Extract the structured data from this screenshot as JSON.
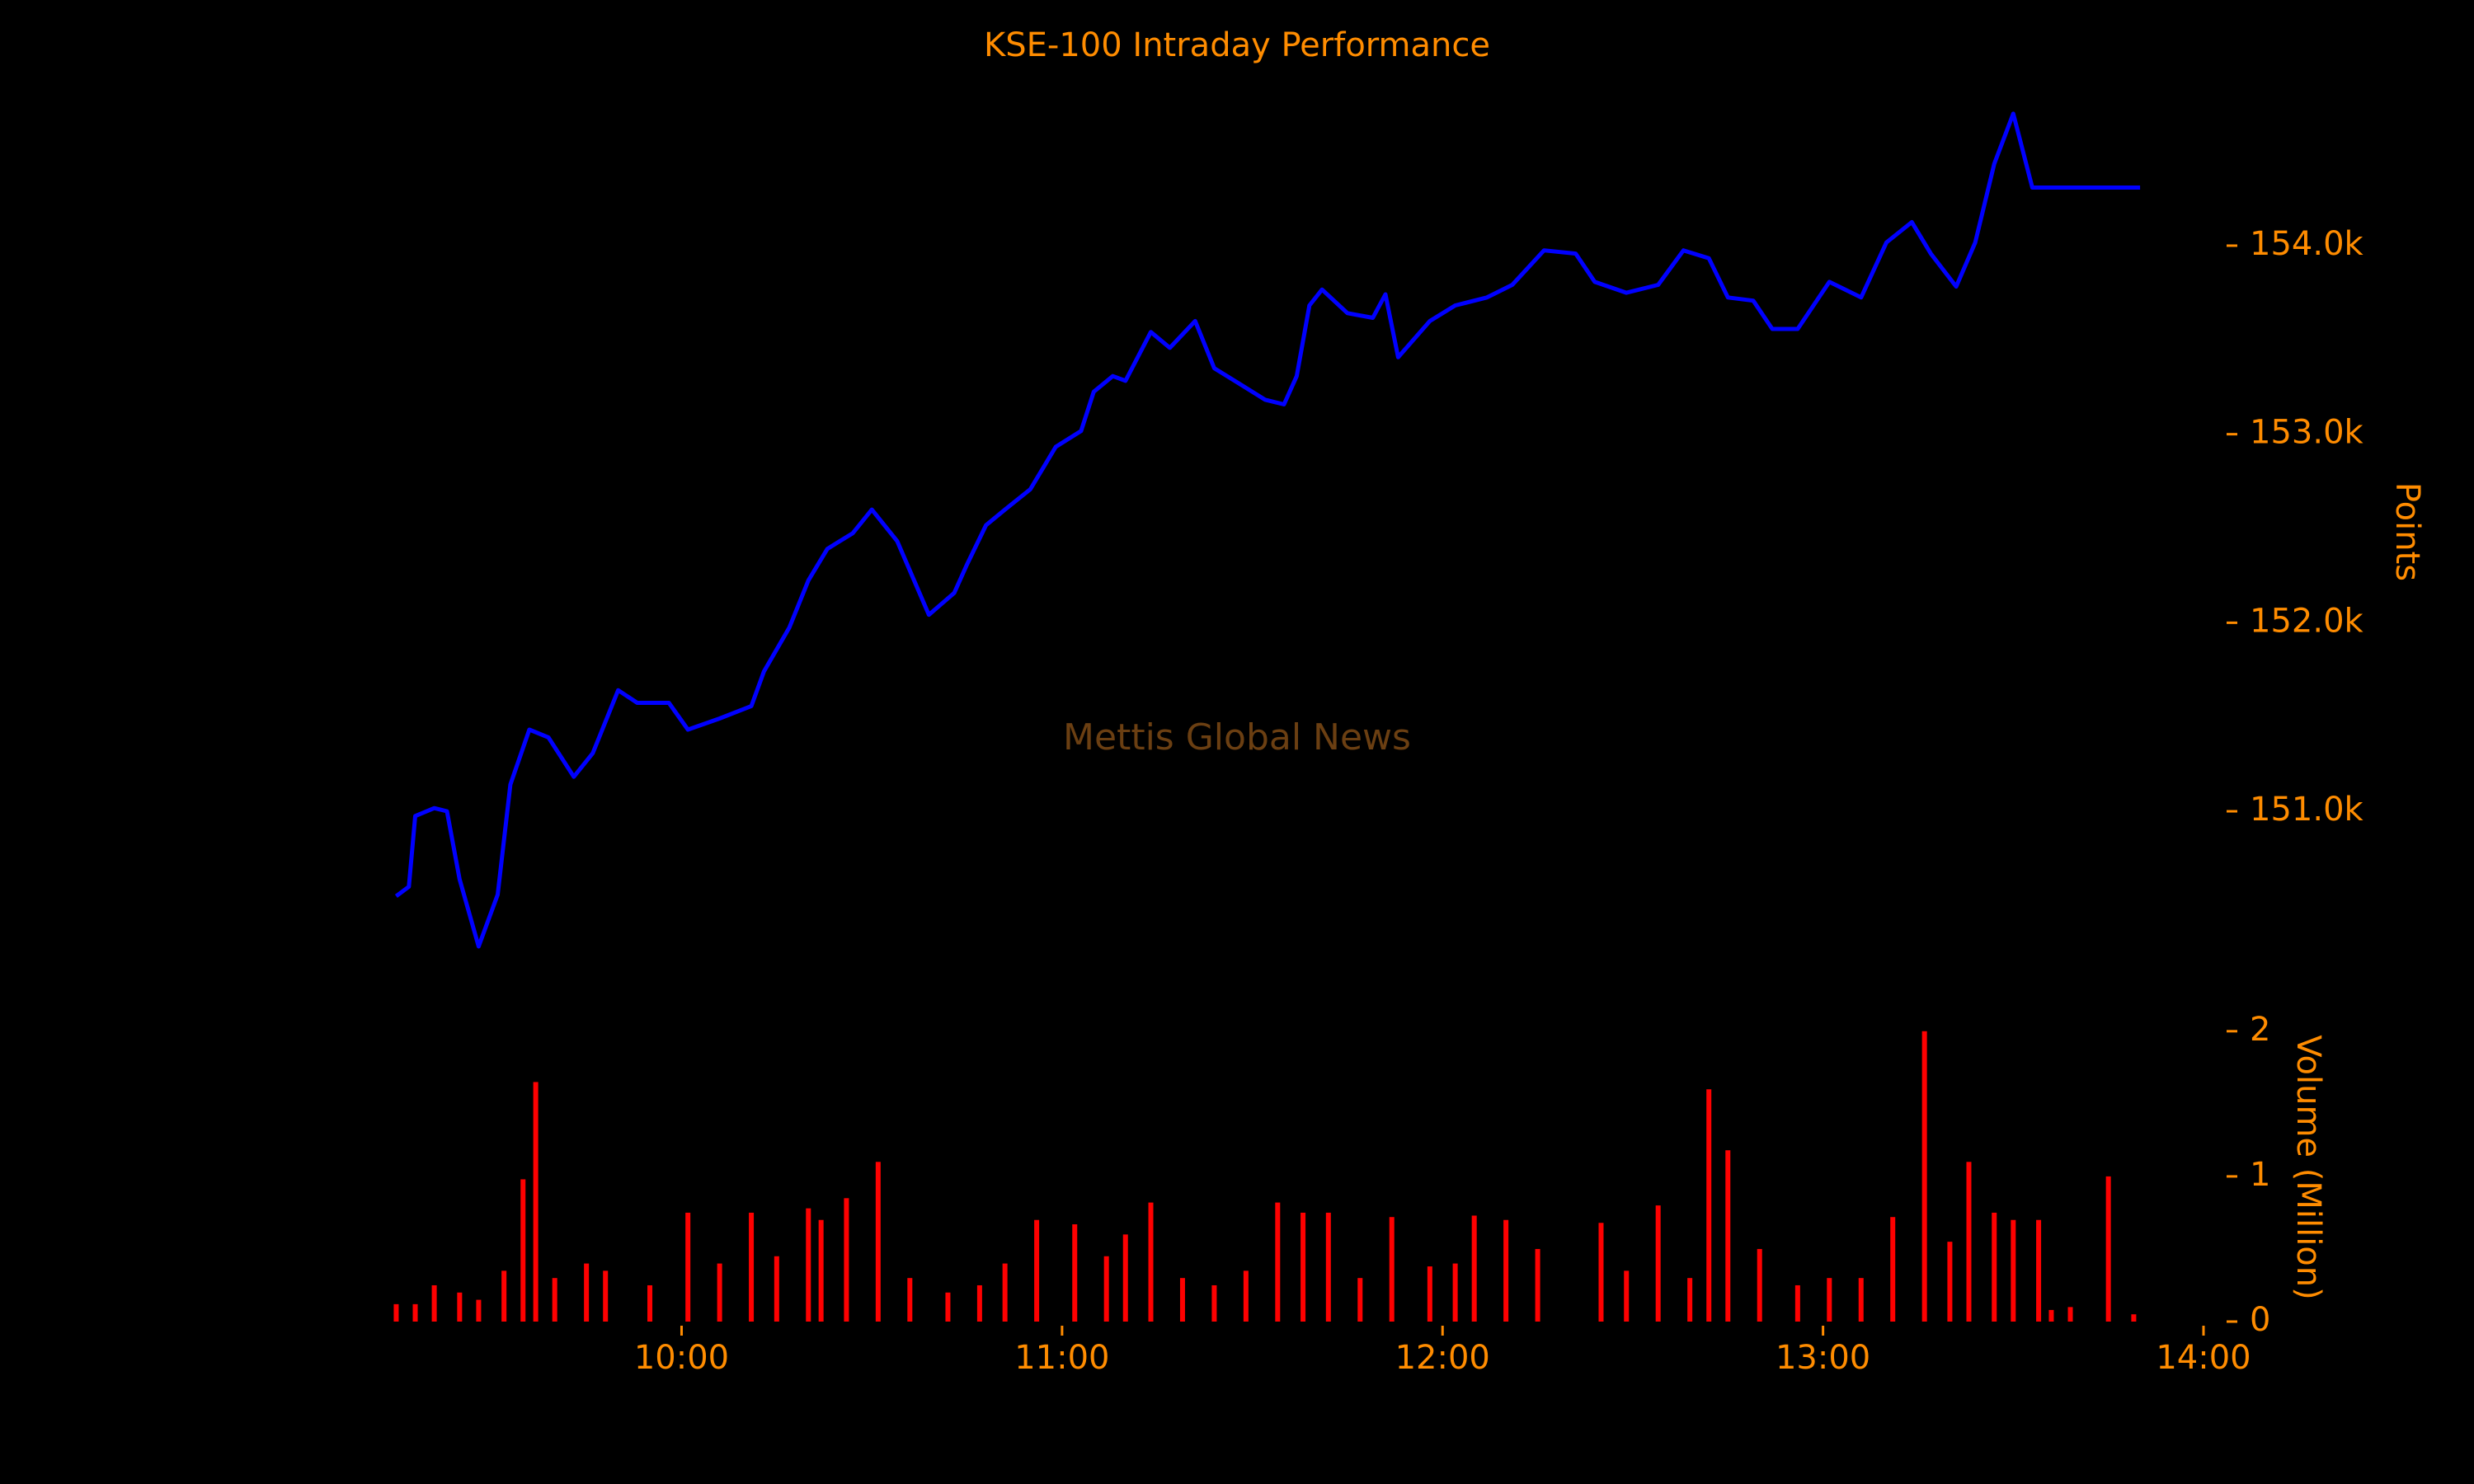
{
  "chart_data": [
    {
      "type": "line",
      "title": "KSE-100 Intraday Performance",
      "y_label": "Points",
      "annotation": "Mettis Global News",
      "xlim": [
        "09:10",
        "14:00"
      ],
      "ylim": [
        150200,
        154800
      ],
      "yticks": [
        {
          "value": 151000,
          "label": "151.0k"
        },
        {
          "value": 152000,
          "label": "152.0k"
        },
        {
          "value": 153000,
          "label": "153.0k"
        },
        {
          "value": 154000,
          "label": "154.0k"
        }
      ],
      "series": [
        {
          "name": "KSE-100",
          "color": "#0000ff",
          "x": [
            "09:15",
            "09:17",
            "09:18",
            "09:21",
            "09:23",
            "09:25",
            "09:28",
            "09:31",
            "09:33",
            "09:36",
            "09:39",
            "09:43",
            "09:46",
            "09:50",
            "09:53",
            "09:58",
            "10:01",
            "10:06",
            "10:11",
            "10:13",
            "10:17",
            "10:20",
            "10:23",
            "10:27",
            "10:30",
            "10:34",
            "10:39",
            "10:43",
            "10:45",
            "10:48",
            "10:51",
            "10:55",
            "10:59",
            "11:03",
            "11:05",
            "11:08",
            "11:10",
            "11:14",
            "11:17",
            "11:21",
            "11:24",
            "11:28",
            "11:32",
            "11:35",
            "11:37",
            "11:39",
            "11:41",
            "11:45",
            "11:49",
            "11:51",
            "11:53",
            "11:58",
            "12:02",
            "12:07",
            "12:11",
            "12:16",
            "12:21",
            "12:24",
            "12:29",
            "12:34",
            "12:38",
            "12:42",
            "12:45",
            "12:49",
            "12:52",
            "12:56",
            "13:01",
            "13:06",
            "13:10",
            "13:14",
            "13:17",
            "13:21",
            "13:24",
            "13:27",
            "13:30",
            "13:33",
            "13:50"
          ],
          "values": [
            150550,
            150600,
            150975,
            151017,
            151000,
            150640,
            150283,
            150558,
            151142,
            151433,
            151392,
            151183,
            151308,
            151642,
            151575,
            151575,
            151433,
            151492,
            151558,
            151742,
            151975,
            152225,
            152392,
            152475,
            152600,
            152433,
            152042,
            152158,
            152308,
            152517,
            152600,
            152708,
            152933,
            153017,
            153225,
            153308,
            153283,
            153542,
            153458,
            153600,
            153350,
            153267,
            153183,
            153158,
            153308,
            153683,
            153767,
            153642,
            153617,
            153742,
            153408,
            153600,
            153683,
            153725,
            153792,
            153975,
            153958,
            153808,
            153750,
            153792,
            153975,
            153933,
            153725,
            153708,
            153558,
            153558,
            153808,
            153725,
            154017,
            154125,
            153958,
            153783,
            154017,
            154433,
            154700,
            154308,
            154308
          ]
        }
      ]
    },
    {
      "type": "bar",
      "y_label": "Volume (Million)",
      "xlim": [
        "09:10",
        "14:00"
      ],
      "xticks": [
        "10:00",
        "11:00",
        "12:00",
        "13:00",
        "14:00"
      ],
      "ylim": [
        0,
        2.05
      ],
      "yticks": [
        0,
        1,
        2
      ],
      "color": "#ff0000",
      "x": [
        "09:15",
        "09:18",
        "09:21",
        "09:25",
        "09:28",
        "09:32",
        "09:35",
        "09:37",
        "09:40",
        "09:45",
        "09:48",
        "09:55",
        "10:01",
        "10:06",
        "10:11",
        "10:15",
        "10:20",
        "10:22",
        "10:26",
        "10:31",
        "10:36",
        "10:42",
        "10:47",
        "10:51",
        "10:56",
        "11:02",
        "11:07",
        "11:10",
        "11:14",
        "11:19",
        "11:24",
        "11:29",
        "11:34",
        "11:38",
        "11:42",
        "11:47",
        "11:52",
        "11:58",
        "12:02",
        "12:05",
        "12:10",
        "12:15",
        "12:25",
        "12:29",
        "12:34",
        "12:39",
        "12:42",
        "12:45",
        "12:50",
        "12:56",
        "13:01",
        "13:06",
        "13:11",
        "13:16",
        "13:20",
        "13:23",
        "13:27",
        "13:30",
        "13:34",
        "13:36",
        "13:39",
        "13:45",
        "13:49"
      ],
      "values": [
        0.12,
        0.12,
        0.25,
        0.2,
        0.15,
        0.35,
        0.98,
        1.65,
        0.3,
        0.4,
        0.35,
        0.25,
        0.75,
        0.4,
        0.75,
        0.45,
        0.78,
        0.7,
        0.85,
        1.1,
        0.3,
        0.2,
        0.25,
        0.4,
        0.7,
        0.67,
        0.45,
        0.6,
        0.82,
        0.3,
        0.25,
        0.35,
        0.82,
        0.75,
        0.75,
        0.3,
        0.72,
        0.38,
        0.4,
        0.73,
        0.7,
        0.5,
        0.68,
        0.35,
        0.8,
        0.3,
        1.6,
        1.18,
        0.5,
        0.25,
        0.3,
        0.3,
        0.72,
        2.0,
        0.55,
        1.1,
        0.75,
        0.7,
        0.7,
        0.08,
        0.1,
        1.0,
        0.05
      ]
    }
  ]
}
